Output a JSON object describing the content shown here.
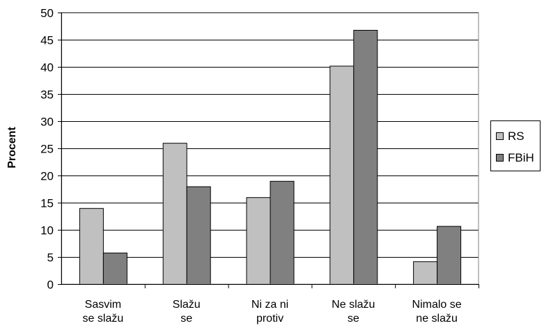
{
  "chart_data": {
    "type": "bar",
    "categories": [
      [
        "Sasvim",
        "se slažu"
      ],
      [
        "Slažu",
        "se"
      ],
      [
        "Ni za ni",
        "protiv"
      ],
      [
        "Ne slažu",
        "se"
      ],
      [
        "Nimalo se",
        "ne slažu"
      ]
    ],
    "series": [
      {
        "name": "RS",
        "values": [
          14,
          26,
          16,
          40.2,
          4.2
        ],
        "color": "#c0c0c0"
      },
      {
        "name": "FBiH",
        "values": [
          5.8,
          18,
          19,
          46.8,
          10.7
        ],
        "color": "#808080"
      }
    ],
    "ylabel": "Procent",
    "xlabel": "",
    "ylim": [
      0,
      50
    ],
    "yticks": [
      0,
      5,
      10,
      15,
      20,
      25,
      30,
      35,
      40,
      45,
      50
    ],
    "grid": true,
    "legend": "right"
  }
}
